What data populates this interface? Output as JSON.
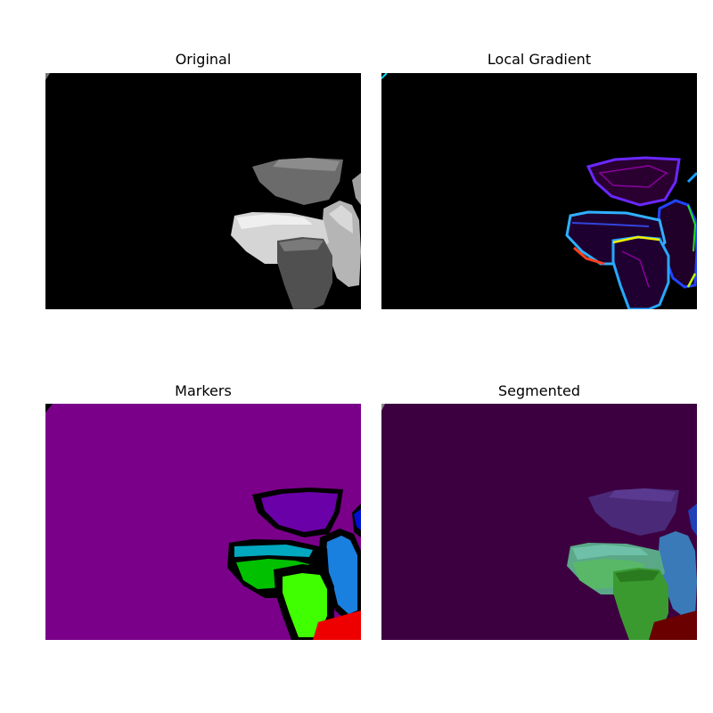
{
  "figure": {
    "panels": [
      {
        "id": "original",
        "title": "Original"
      },
      {
        "id": "gradient",
        "title": "Local Gradient"
      },
      {
        "id": "markers",
        "title": "Markers"
      },
      {
        "id": "segmented",
        "title": "Segmented"
      }
    ]
  },
  "colors": {
    "page_background": "#ffffff",
    "black": "#000000",
    "markers_background": "#7a008a",
    "segmented_background": "#3c0040"
  }
}
